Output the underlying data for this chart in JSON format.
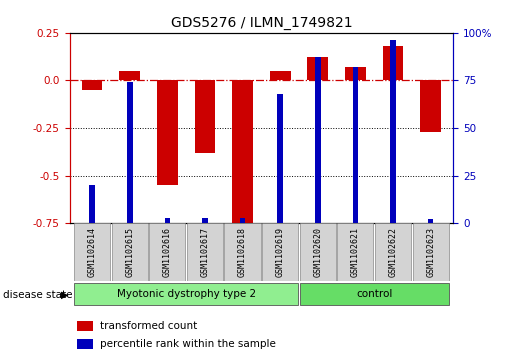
{
  "title": "GDS5276 / ILMN_1749821",
  "samples": [
    "GSM1102614",
    "GSM1102615",
    "GSM1102616",
    "GSM1102617",
    "GSM1102618",
    "GSM1102619",
    "GSM1102620",
    "GSM1102621",
    "GSM1102622",
    "GSM1102623"
  ],
  "red_values": [
    -0.05,
    0.05,
    -0.55,
    -0.38,
    -0.75,
    0.05,
    0.12,
    0.07,
    0.18,
    -0.27
  ],
  "blue_values": [
    20,
    74,
    3,
    3,
    3,
    68,
    87,
    82,
    96,
    2
  ],
  "red_color": "#CC0000",
  "blue_color": "#0000BB",
  "ylim_left": [
    -0.75,
    0.25
  ],
  "ylim_right": [
    0,
    100
  ],
  "yticks_left": [
    -0.75,
    -0.5,
    -0.25,
    0.0,
    0.25
  ],
  "yticks_right": [
    0,
    25,
    50,
    75,
    100
  ],
  "ytick_labels_right": [
    "0",
    "25",
    "50",
    "75",
    "100%"
  ],
  "hline_y": 0.0,
  "dotted_lines": [
    -0.25,
    -0.5
  ],
  "disease_groups": [
    {
      "label": "Myotonic dystrophy type 2",
      "start": 0,
      "end": 6,
      "color": "#90EE90"
    },
    {
      "label": "control",
      "start": 6,
      "end": 10,
      "color": "#66DD66"
    }
  ],
  "disease_state_label": "disease state",
  "legend_items": [
    {
      "color": "#CC0000",
      "label": "transformed count"
    },
    {
      "color": "#0000BB",
      "label": "percentile rank within the sample"
    }
  ],
  "red_bar_width": 0.55,
  "blue_bar_width": 0.15,
  "sample_box_color": "#D3D3D3",
  "plot_bg": "#FFFFFF"
}
